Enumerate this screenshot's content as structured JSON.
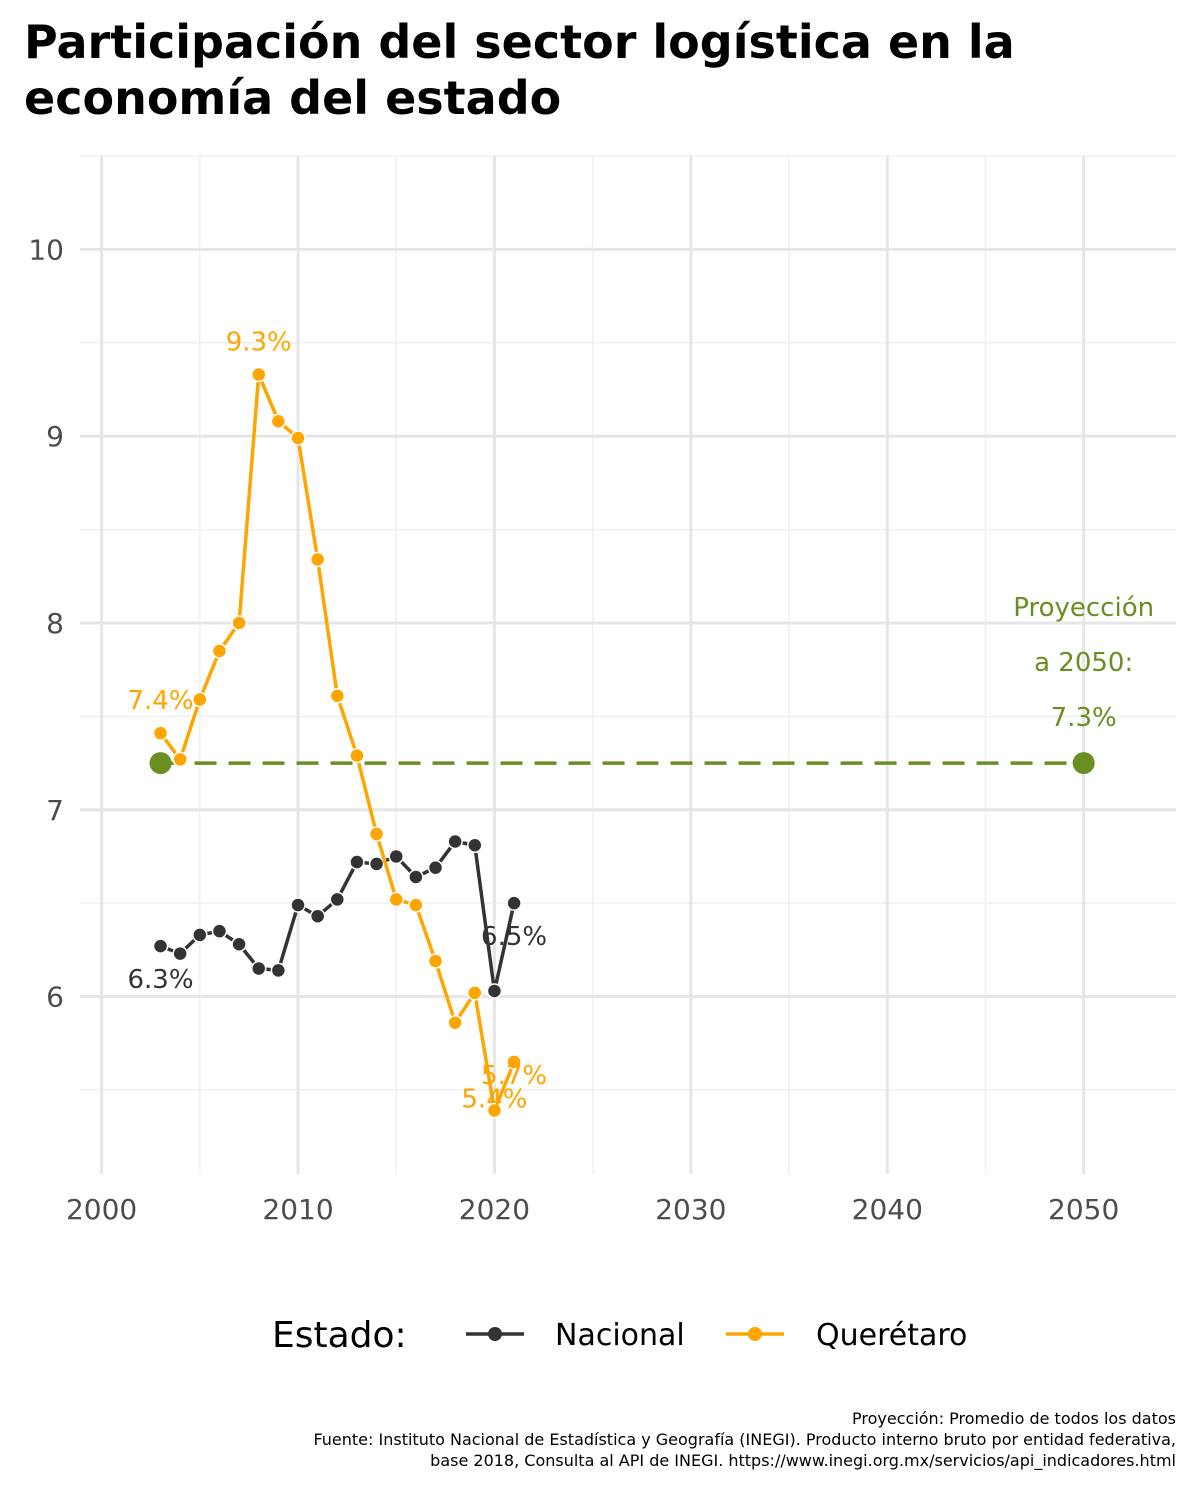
{
  "title": "Participación del sector logística en la economía del estado",
  "caption": [
    "Proyección: Promedio de todos los datos",
    "Fuente: Instituto Nacional de Estadística y Geografía (INEGI). Producto interno bruto por entidad federativa,",
    "base 2018, Consulta al API de INEGI. https://www.inegi.org.mx/servicios/api_indicadores.html"
  ],
  "chart_data": {
    "type": "line",
    "xlim": [
      1998.9,
      2054.7
    ],
    "ylim": [
      5.05,
      10.5
    ],
    "x_ticks": [
      "2000",
      "2010",
      "2020",
      "2030",
      "2040",
      "2050"
    ],
    "y_ticks": [
      "6",
      "7",
      "8",
      "9",
      "10"
    ],
    "grid": true,
    "legend": {
      "title": "Estado:",
      "position": "bottom"
    },
    "series": [
      {
        "name": "Nacional",
        "color": "#333333",
        "x": [
          2003,
          2004,
          2005,
          2006,
          2007,
          2008,
          2009,
          2010,
          2011,
          2012,
          2013,
          2014,
          2015,
          2016,
          2017,
          2018,
          2019,
          2020,
          2021
        ],
        "y": [
          6.27,
          6.23,
          6.33,
          6.35,
          6.28,
          6.15,
          6.14,
          6.49,
          6.43,
          6.52,
          6.72,
          6.71,
          6.75,
          6.64,
          6.69,
          6.83,
          6.81,
          6.03,
          6.5
        ],
        "labels": [
          {
            "x": 2003,
            "y": 6.27,
            "text": "6.3%",
            "pos": "below"
          },
          {
            "x": 2021,
            "y": 6.5,
            "text": "6.5%",
            "pos": "below"
          }
        ]
      },
      {
        "name": "Querétaro",
        "color": "#FFA500",
        "x": [
          2003,
          2004,
          2005,
          2006,
          2007,
          2008,
          2009,
          2010,
          2011,
          2012,
          2013,
          2014,
          2015,
          2016,
          2017,
          2018,
          2019,
          2020,
          2021
        ],
        "y": [
          7.41,
          7.27,
          7.59,
          7.85,
          8.0,
          9.33,
          9.08,
          8.99,
          8.34,
          7.61,
          7.29,
          6.87,
          6.52,
          6.49,
          6.19,
          5.86,
          6.02,
          5.39,
          5.65
        ],
        "labels": [
          {
            "x": 2003,
            "y": 7.41,
            "text": "7.4%",
            "pos": "above"
          },
          {
            "x": 2008,
            "y": 9.33,
            "text": "9.3%",
            "pos": "above"
          },
          {
            "x": 2020,
            "y": 5.39,
            "text": "5.4%",
            "pos": "nudge"
          },
          {
            "x": 2021,
            "y": 5.65,
            "text": "5.7%",
            "pos": "nudge"
          }
        ]
      }
    ],
    "projection": {
      "color": "#6B8E23",
      "start": {
        "x": 2003,
        "y": 7.25
      },
      "end": {
        "x": 2050,
        "y": 7.25
      },
      "label": [
        "Proyección",
        "a 2050:",
        "7.3%"
      ]
    }
  }
}
